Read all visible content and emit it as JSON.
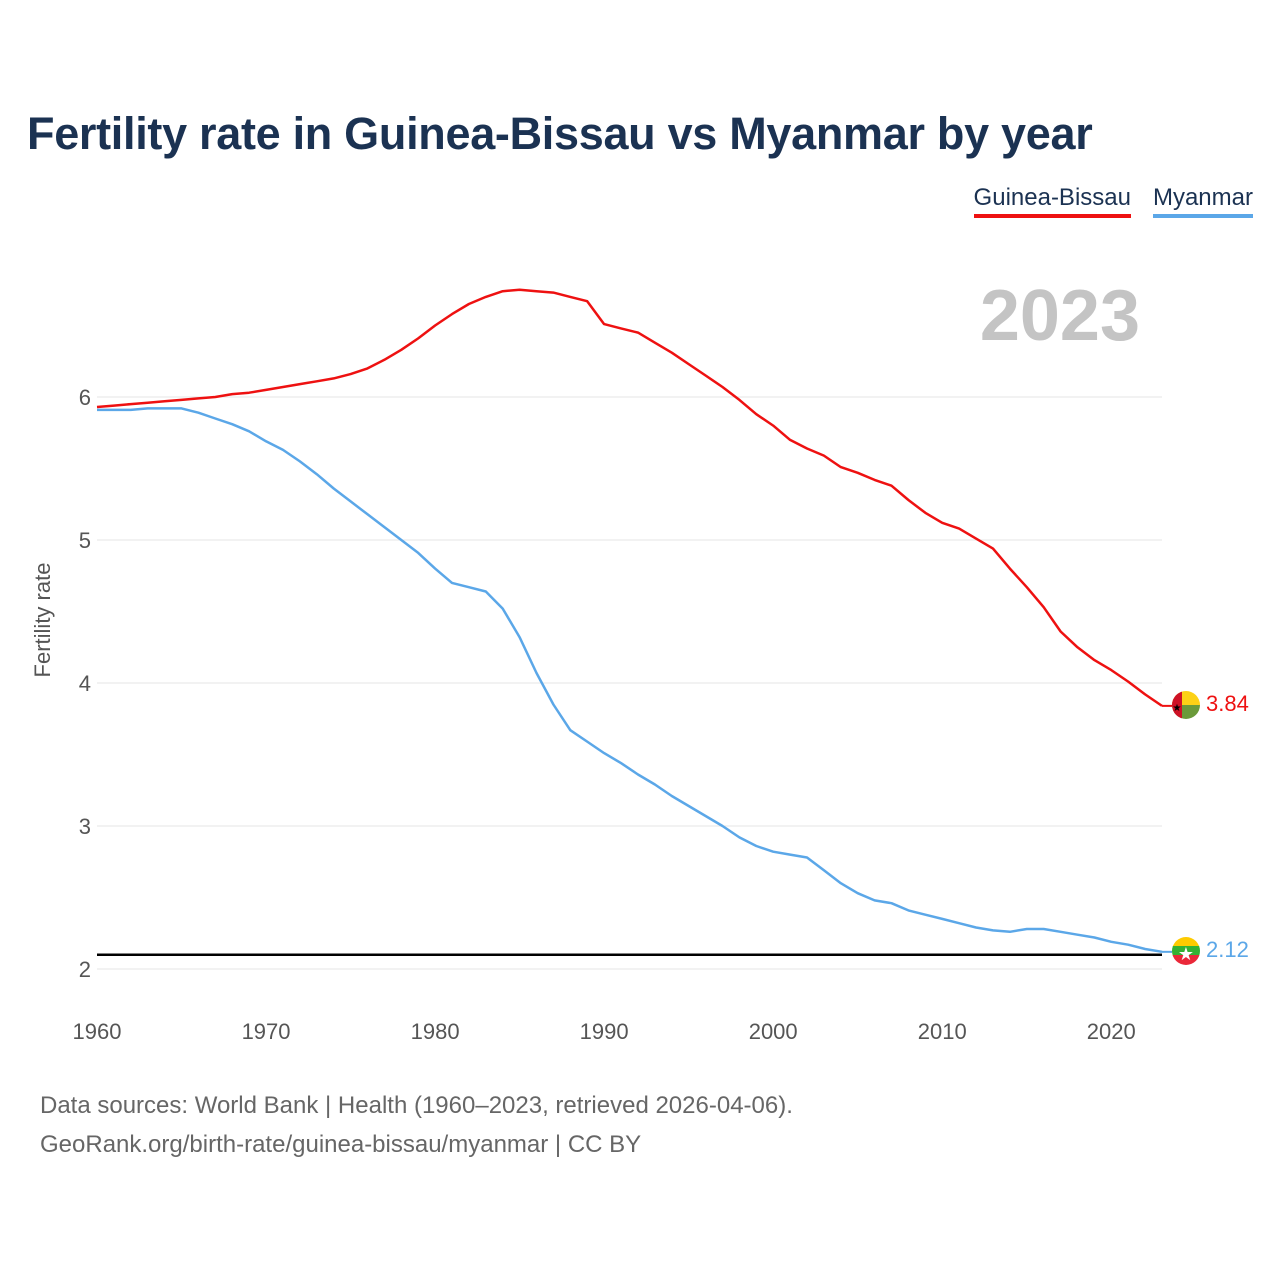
{
  "title": "Fertility rate in Guinea-Bissau vs Myanmar by year",
  "legend": [
    {
      "name": "Guinea-Bissau",
      "color": "#ee1111"
    },
    {
      "name": "Myanmar",
      "color": "#5ba7e8"
    }
  ],
  "year_display": "2023",
  "footer": {
    "sources": "Data sources: World Bank | Health (1960–2023, retrieved 2026-04-06).",
    "link": "GeoRank.org/birth-rate/guinea-bissau/myanmar | CC BY"
  },
  "chart_data": {
    "type": "line",
    "title": "Fertility rate in Guinea-Bissau vs Myanmar by year",
    "xlabel": "",
    "ylabel": "Fertility rate",
    "xlim": [
      1960,
      2023
    ],
    "ylim": [
      1.8,
      6.9
    ],
    "x_ticks": [
      1960,
      1970,
      1980,
      1990,
      2000,
      2010,
      2020
    ],
    "y_ticks": [
      2,
      3,
      4,
      5,
      6
    ],
    "grid": true,
    "reference_line": 2.1,
    "x": [
      1960,
      1961,
      1962,
      1963,
      1964,
      1965,
      1966,
      1967,
      1968,
      1969,
      1970,
      1971,
      1972,
      1973,
      1974,
      1975,
      1976,
      1977,
      1978,
      1979,
      1980,
      1981,
      1982,
      1983,
      1984,
      1985,
      1986,
      1987,
      1988,
      1989,
      1990,
      1991,
      1992,
      1993,
      1994,
      1995,
      1996,
      1997,
      1998,
      1999,
      2000,
      2001,
      2002,
      2003,
      2004,
      2005,
      2006,
      2007,
      2008,
      2009,
      2010,
      2011,
      2012,
      2013,
      2014,
      2015,
      2016,
      2017,
      2018,
      2019,
      2020,
      2021,
      2022,
      2023
    ],
    "series": [
      {
        "name": "Guinea-Bissau",
        "color": "#ee1111",
        "end_label": "3.84",
        "values": [
          5.93,
          5.94,
          5.95,
          5.96,
          5.97,
          5.98,
          5.99,
          6.0,
          6.02,
          6.03,
          6.05,
          6.07,
          6.09,
          6.11,
          6.13,
          6.16,
          6.2,
          6.26,
          6.33,
          6.41,
          6.5,
          6.58,
          6.65,
          6.7,
          6.74,
          6.75,
          6.74,
          6.73,
          6.7,
          6.67,
          6.51,
          6.48,
          6.45,
          6.38,
          6.31,
          6.23,
          6.15,
          6.07,
          5.98,
          5.88,
          5.8,
          5.7,
          5.64,
          5.59,
          5.51,
          5.47,
          5.42,
          5.38,
          5.28,
          5.19,
          5.12,
          5.08,
          5.01,
          4.94,
          4.8,
          4.67,
          4.53,
          4.36,
          4.25,
          4.16,
          4.09,
          4.01,
          3.92,
          3.84
        ]
      },
      {
        "name": "Myanmar",
        "color": "#5ba7e8",
        "end_label": "2.12",
        "values": [
          5.91,
          5.91,
          5.91,
          5.92,
          5.92,
          5.92,
          5.89,
          5.85,
          5.81,
          5.76,
          5.69,
          5.63,
          5.55,
          5.46,
          5.36,
          5.27,
          5.18,
          5.09,
          5.0,
          4.91,
          4.8,
          4.7,
          4.67,
          4.64,
          4.52,
          4.32,
          4.07,
          3.85,
          3.67,
          3.59,
          3.51,
          3.44,
          3.36,
          3.29,
          3.21,
          3.14,
          3.07,
          3.0,
          2.92,
          2.86,
          2.82,
          2.8,
          2.78,
          2.69,
          2.6,
          2.53,
          2.48,
          2.46,
          2.41,
          2.38,
          2.35,
          2.32,
          2.29,
          2.27,
          2.26,
          2.28,
          2.28,
          2.26,
          2.24,
          2.22,
          2.19,
          2.17,
          2.14,
          2.12
        ]
      }
    ]
  }
}
